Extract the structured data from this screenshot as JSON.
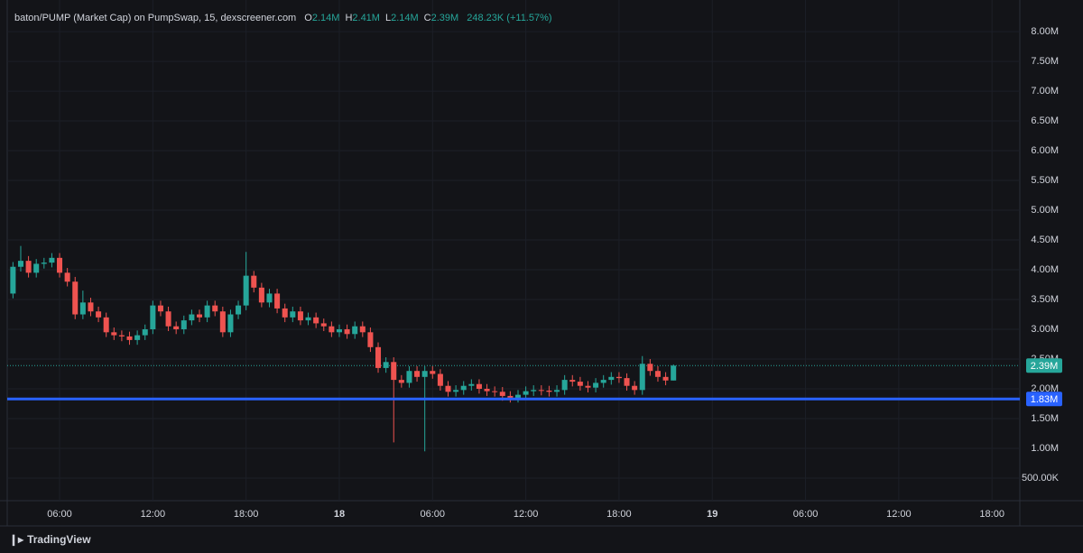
{
  "chart_data": {
    "type": "candlestick",
    "title": "baton/PUMP (Market Cap) on PumpSwap, 15, dexscreener.com",
    "ohlc_legend": [
      {
        "key": "O",
        "value": "2.14M"
      },
      {
        "key": "H",
        "value": "2.41M"
      },
      {
        "key": "L",
        "value": "2.14M"
      },
      {
        "key": "C",
        "value": "2.39M"
      }
    ],
    "change": "248.23K (+11.57%)",
    "x": [
      3,
      3.5,
      4,
      4.5,
      5,
      5.5,
      6,
      6.5,
      7,
      7.5,
      8,
      8.5,
      9,
      9.5,
      10,
      10.5,
      11,
      11.5,
      12,
      12.5,
      13,
      13.5,
      14,
      14.5,
      15,
      15.5,
      16,
      16.5,
      17,
      17.5,
      18,
      18.5,
      19,
      19.5,
      20,
      20.5,
      21,
      21.5,
      22,
      22.5,
      23,
      23.5,
      24,
      24.5,
      25,
      25.5,
      26,
      26.5,
      27,
      27.5,
      28,
      28.5,
      29,
      29.5,
      30,
      30.5,
      31,
      31.5,
      32,
      32.5,
      33,
      33.5,
      34,
      34.5,
      35,
      35.5,
      36,
      36.5,
      37,
      37.5,
      38,
      38.5,
      39,
      39.5,
      40,
      40.5,
      41,
      41.5,
      42,
      42.5,
      43,
      43.5,
      44,
      44.5,
      45,
      45.5
    ],
    "open": [
      3600000,
      4050000,
      4150000,
      3950000,
      4100000,
      4120000,
      4200000,
      3950000,
      3800000,
      3250000,
      3450000,
      3300000,
      3200000,
      2950000,
      2900000,
      2880000,
      2820000,
      2900000,
      3000000,
      3400000,
      3300000,
      3050000,
      3000000,
      3150000,
      3250000,
      3200000,
      3400000,
      3300000,
      2950000,
      3250000,
      3400000,
      3900000,
      3700000,
      3450000,
      3600000,
      3350000,
      3200000,
      3300000,
      3150000,
      3200000,
      3100000,
      3050000,
      2950000,
      3000000,
      2920000,
      3050000,
      2950000,
      2700000,
      2350000,
      2450000,
      2150000,
      2100000,
      2300000,
      2200000,
      2300000,
      2250000,
      2050000,
      1950000,
      1980000,
      2050000,
      2080000,
      2000000,
      1960000,
      1950000,
      1880000,
      1850000,
      1900000,
      1960000,
      1980000,
      1970000,
      1950000,
      1980000,
      2150000,
      2120000,
      2050000,
      2020000,
      2100000,
      2150000,
      2200000,
      2180000,
      2050000,
      1980000,
      2420000,
      2300000,
      2200000,
      2140000
    ],
    "high": [
      4130000,
      4400000,
      4230000,
      4180000,
      4200000,
      4280000,
      4280000,
      4030000,
      3880000,
      3650000,
      3530000,
      3380000,
      3280000,
      3030000,
      2980000,
      2960000,
      2980000,
      3080000,
      3480000,
      3480000,
      3380000,
      3130000,
      3230000,
      3330000,
      3330000,
      3480000,
      3480000,
      3380000,
      3330000,
      3480000,
      4300000,
      3980000,
      3780000,
      3680000,
      3680000,
      3430000,
      3380000,
      3380000,
      3280000,
      3280000,
      3180000,
      3130000,
      3080000,
      3080000,
      3130000,
      3130000,
      3030000,
      2780000,
      2530000,
      2530000,
      2230000,
      2380000,
      2380000,
      2380000,
      2380000,
      2330000,
      2130000,
      2060000,
      2130000,
      2160000,
      2160000,
      2080000,
      2040000,
      2030000,
      1960000,
      1980000,
      2040000,
      2060000,
      2060000,
      2050000,
      2060000,
      2230000,
      2230000,
      2200000,
      2130000,
      2180000,
      2230000,
      2280000,
      2280000,
      2260000,
      2130000,
      2550000,
      2500000,
      2380000,
      2280000,
      2410000
    ],
    "low": [
      3520000,
      3970000,
      3870000,
      3870000,
      4020000,
      4040000,
      3870000,
      3720000,
      3170000,
      3170000,
      3220000,
      3120000,
      2870000,
      2820000,
      2800000,
      2740000,
      2740000,
      2820000,
      2920000,
      3220000,
      2970000,
      2920000,
      2920000,
      3070000,
      3120000,
      3120000,
      3220000,
      2870000,
      2870000,
      3170000,
      3320000,
      3620000,
      3370000,
      3370000,
      3270000,
      3120000,
      3120000,
      3070000,
      3070000,
      3020000,
      2970000,
      2870000,
      2870000,
      2840000,
      2840000,
      2870000,
      2620000,
      2270000,
      2270000,
      1100000,
      2020000,
      2020000,
      2120000,
      950000,
      2170000,
      1970000,
      1870000,
      1870000,
      1900000,
      1970000,
      1920000,
      1880000,
      1870000,
      1800000,
      1770000,
      1770000,
      1820000,
      1880000,
      1890000,
      1870000,
      1870000,
      1900000,
      2040000,
      1970000,
      1940000,
      1940000,
      2020000,
      2070000,
      2100000,
      1970000,
      1900000,
      1900000,
      2220000,
      2120000,
      2060000,
      2140000
    ],
    "close": [
      4050000,
      4150000,
      3950000,
      4100000,
      4120000,
      4200000,
      3950000,
      3800000,
      3250000,
      3450000,
      3300000,
      3200000,
      2950000,
      2900000,
      2880000,
      2820000,
      2900000,
      3000000,
      3400000,
      3300000,
      3050000,
      3000000,
      3150000,
      3250000,
      3200000,
      3400000,
      3300000,
      2950000,
      3250000,
      3400000,
      3900000,
      3700000,
      3450000,
      3600000,
      3350000,
      3200000,
      3300000,
      3150000,
      3200000,
      3100000,
      3050000,
      2950000,
      3000000,
      2920000,
      3050000,
      2950000,
      2700000,
      2350000,
      2450000,
      2150000,
      2100000,
      2300000,
      2200000,
      2300000,
      2250000,
      2050000,
      1950000,
      1980000,
      2050000,
      2080000,
      2000000,
      1960000,
      1950000,
      1880000,
      1850000,
      1900000,
      1960000,
      1980000,
      1970000,
      1950000,
      1980000,
      2150000,
      2120000,
      2050000,
      2020000,
      2100000,
      2150000,
      2200000,
      2180000,
      2050000,
      1980000,
      2420000,
      2300000,
      2200000,
      2140000,
      2390000
    ],
    "up_color": "#26a69a",
    "down_color": "#ef5350",
    "xlim": [
      2.63,
      67.79
    ],
    "xticks": [
      {
        "value": 6,
        "label": "06:00"
      },
      {
        "value": 12,
        "label": "12:00"
      },
      {
        "value": 18,
        "label": "18:00"
      },
      {
        "value": 24,
        "label": "18"
      },
      {
        "value": 30,
        "label": "06:00"
      },
      {
        "value": 36,
        "label": "12:00"
      },
      {
        "value": 42,
        "label": "18:00"
      },
      {
        "value": 48,
        "label": "19"
      },
      {
        "value": 54,
        "label": "06:00"
      },
      {
        "value": 60,
        "label": "12:00"
      },
      {
        "value": 66,
        "label": "18:00"
      }
    ],
    "ylim": [
      121000,
      8380000
    ],
    "yticks": [
      {
        "value": 500000,
        "label": "500.00K"
      },
      {
        "value": 1000000,
        "label": "1.00M"
      },
      {
        "value": 1500000,
        "label": "1.50M"
      },
      {
        "value": 2000000,
        "label": "2.00M"
      },
      {
        "value": 2500000,
        "label": "2.50M"
      },
      {
        "value": 3000000,
        "label": "3.00M"
      },
      {
        "value": 3500000,
        "label": "3.50M"
      },
      {
        "value": 4000000,
        "label": "4.00M"
      },
      {
        "value": 4500000,
        "label": "4.50M"
      },
      {
        "value": 5000000,
        "label": "5.00M"
      },
      {
        "value": 5500000,
        "label": "5.50M"
      },
      {
        "value": 6000000,
        "label": "6.00M"
      },
      {
        "value": 6500000,
        "label": "6.50M"
      },
      {
        "value": 7000000,
        "label": "7.00M"
      },
      {
        "value": 7500000,
        "label": "7.50M"
      },
      {
        "value": 8000000,
        "label": "8.00M"
      }
    ],
    "grid": true,
    "last_price": {
      "value": 2390000,
      "label": "2.39M",
      "color": "#26a69a"
    },
    "price_line": {
      "value": 1830000,
      "label": "1.83M",
      "color": "#2962ff"
    },
    "branding": "TradingView"
  }
}
